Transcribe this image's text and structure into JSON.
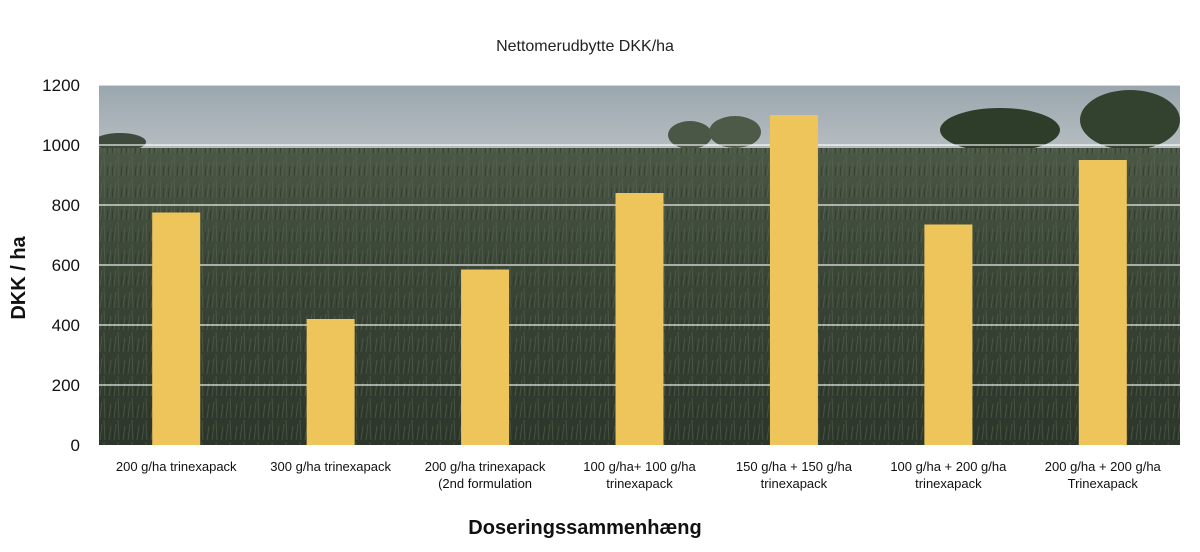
{
  "chart_data": {
    "type": "bar",
    "title": "Nettomerudbytte DKK/ha",
    "xlabel": "Doseringssammenhæng",
    "ylabel": "DKK / ha",
    "ylim": [
      0,
      1200
    ],
    "yticks": [
      0,
      200,
      400,
      600,
      800,
      1000,
      1200
    ],
    "grid": true,
    "legend": "none",
    "bar_color": "#EEC55A",
    "categories": [
      [
        "200 g/ha trinexapack"
      ],
      [
        "300 g/ha trinexapack"
      ],
      [
        "200 g/ha trinexapack",
        "(2nd formulation"
      ],
      [
        "100 g/ha+ 100 g/ha",
        "trinexapack"
      ],
      [
        "150 g/ha + 150 g/ha",
        "trinexapack"
      ],
      [
        "100 g/ha + 200 g/ha",
        "trinexapack"
      ],
      [
        "200 g/ha + 200 g/ha",
        "Trinexapack"
      ]
    ],
    "values": [
      775,
      420,
      585,
      840,
      1100,
      735,
      950
    ]
  },
  "background": {
    "description_icon": "grass-field-photo",
    "sky_color": "#8E9AA3",
    "grass_color": "#3A4636"
  }
}
